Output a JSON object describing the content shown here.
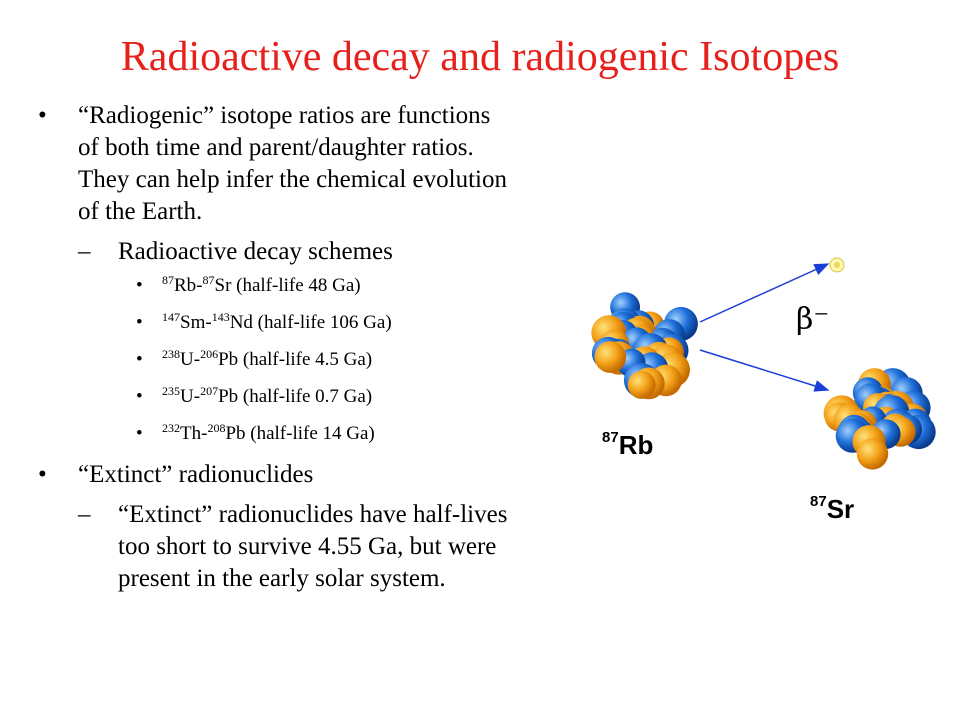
{
  "title": "Radioactive decay and radiogenic Isotopes",
  "bullets": {
    "radiogenic": "“Radiogenic” isotope ratios are functions of both time and parent/daughter ratios.  They can help infer the chemical evolution of the Earth.",
    "schemes_heading": "Radioactive decay schemes",
    "schemes": [
      {
        "p_mass": "87",
        "p_el": "Rb-",
        "d_mass": "87",
        "d_el": "Sr (half-life 48 Ga)"
      },
      {
        "p_mass": "147",
        "p_el": "Sm-",
        "d_mass": "143",
        "d_el": "Nd (half-life 106 Ga)"
      },
      {
        "p_mass": "238",
        "p_el": "U-",
        "d_mass": "206",
        "d_el": "Pb (half-life 4.5 Ga)"
      },
      {
        "p_mass": "235",
        "p_el": "U-",
        "d_mass": "207",
        "d_el": "Pb (half-life 0.7 Ga)"
      },
      {
        "p_mass": "232",
        "p_el": "Th-",
        "d_mass": "208",
        "d_el": "Pb (half-life 14 Ga)"
      }
    ],
    "extinct": "“Extinct” radionuclides",
    "extinct_detail": "“Extinct” radionuclides have half-lives too short to survive 4.55 Ga, but were present in the early solar system."
  },
  "diagram": {
    "parent_mass": "87",
    "parent_symbol": "Rb",
    "daughter_mass": "87",
    "daughter_symbol": "Sr",
    "particle": "β⁻",
    "arrow_color": "#1a3fd8",
    "nucleon_colors": [
      "#f4a21a",
      "#1e6fd9"
    ]
  }
}
